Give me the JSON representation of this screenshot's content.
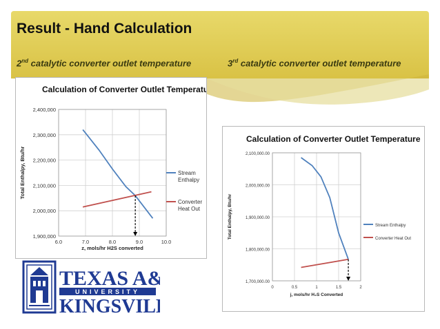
{
  "slide": {
    "title": "Result - Hand Calculation",
    "subtitle_left": {
      "num": "2",
      "sup": "nd",
      "text": " catalytic converter outlet temperature"
    },
    "subtitle_right": {
      "num": "3",
      "sup": "rd",
      "text": " catalytic converter outlet temperature"
    }
  },
  "colors": {
    "band": "#d9c245",
    "stream": "#4f81bd",
    "heat": "#c0504d"
  },
  "logo": {
    "line1": "TEXAS A&M",
    "line2": "UNIVERSITY",
    "line3": "KINGSVILLE",
    "color": "#1f3a93"
  },
  "chart_data": [
    {
      "type": "line",
      "title": "Calculation of Converter Outlet Temperature",
      "xlabel": "z, mols/hr H2S converted",
      "ylabel": "Total Enthalpy, Btu/hr",
      "xlim": [
        6.0,
        10.0
      ],
      "ylim": [
        1900000,
        2400000
      ],
      "xticks": [
        "6.0",
        "7.0",
        "8.0",
        "9.0",
        "10.0"
      ],
      "yticks": [
        "1,900,000",
        "2,000,000",
        "2,100,000",
        "2,200,000",
        "2,300,000",
        "2,400,000"
      ],
      "legend_position": "right",
      "grid": true,
      "series": [
        {
          "name": "Stream Enthalpy",
          "x": [
            6.9,
            7.5,
            8.0,
            8.5,
            8.85,
            9.5
          ],
          "y": [
            2320000,
            2240000,
            2165000,
            2095000,
            2060000,
            1970000
          ]
        },
        {
          "name": "Converter Heat Out",
          "x": [
            6.9,
            9.45
          ],
          "y": [
            2015000,
            2075000
          ]
        }
      ],
      "annotation": {
        "type": "dashed-drop-arrow",
        "x": 8.85,
        "y": 2060000
      }
    },
    {
      "type": "line",
      "title": "Calculation of Converter Outlet Temperature",
      "xlabel": "j, mols/hr H₂S Converted",
      "ylabel": "Total Enthalpy, Btu/hr",
      "xlim": [
        0,
        2
      ],
      "ylim": [
        1700000,
        2100000
      ],
      "xticks": [
        "0",
        "0.5",
        "1",
        "1.5",
        "2"
      ],
      "yticks": [
        "1,700,000.00",
        "1,800,000.00",
        "1,900,000.00",
        "2,000,000.00",
        "2,100,000.00"
      ],
      "legend_position": "right",
      "grid": true,
      "series": [
        {
          "name": "Stream Enthalpy",
          "x": [
            0.65,
            0.9,
            1.1,
            1.3,
            1.5,
            1.72
          ],
          "y": [
            2085000,
            2060000,
            2025000,
            1960000,
            1850000,
            1767000
          ]
        },
        {
          "name": "Converter Heat Out",
          "x": [
            0.65,
            1.72
          ],
          "y": [
            1742000,
            1767000
          ]
        }
      ],
      "annotation": {
        "type": "dashed-drop-arrow",
        "x": 1.72,
        "y": 1767000
      }
    }
  ]
}
